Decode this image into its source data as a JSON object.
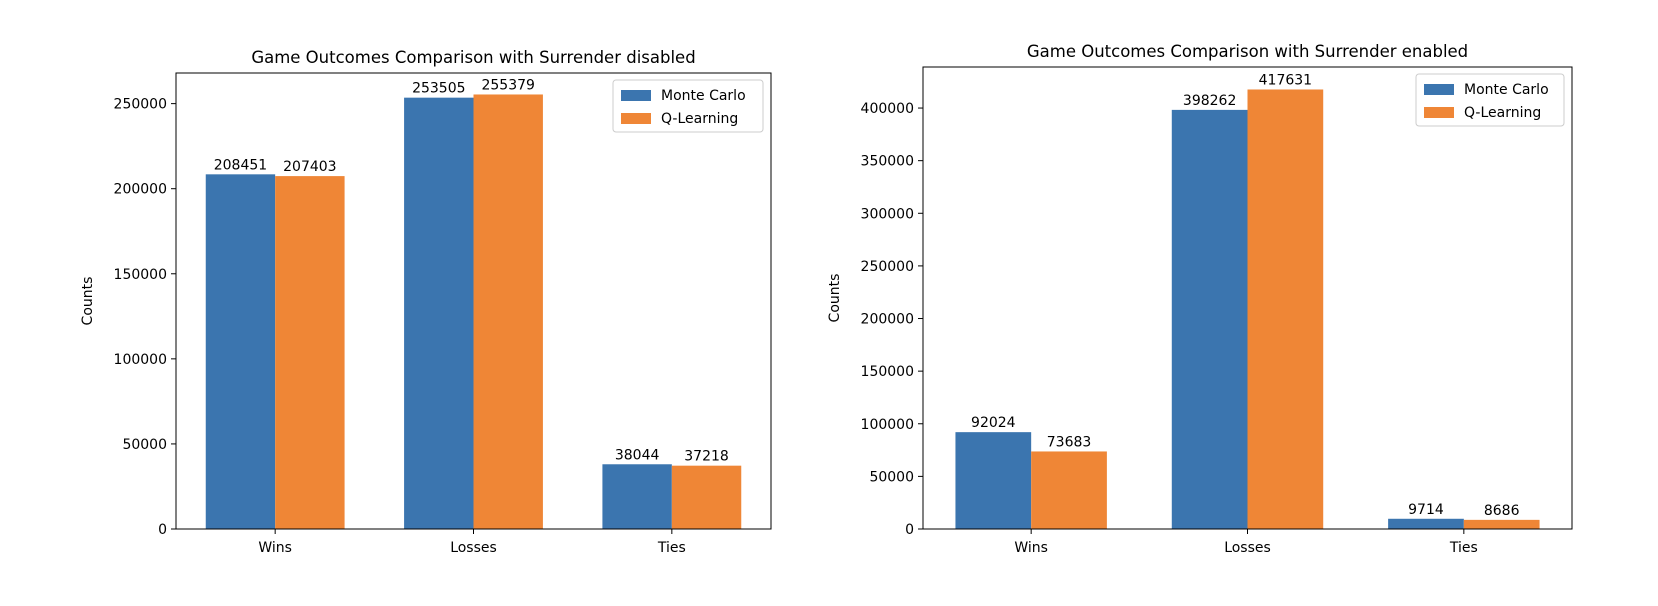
{
  "colors": {
    "series_0": "#3b75af",
    "series_1": "#ef8636"
  },
  "chart_data": [
    {
      "type": "bar",
      "title": "Game Outcomes Comparison with Surrender disabled",
      "xlabel": "",
      "ylabel": "Counts",
      "categories": [
        "Wins",
        "Losses",
        "Ties"
      ],
      "series": [
        {
          "name": "Monte Carlo",
          "values": [
            208451,
            253505,
            38044
          ],
          "labels": [
            "208451",
            "253505",
            "38044"
          ]
        },
        {
          "name": "Q-Learning",
          "values": [
            207403,
            255379,
            37218
          ],
          "labels": [
            "207403",
            "255379",
            "37218"
          ]
        }
      ],
      "ylim": [
        0,
        268000
      ],
      "yticks": [
        0,
        50000,
        100000,
        150000,
        200000,
        250000
      ],
      "ytick_labels": [
        "0",
        "50000",
        "100000",
        "150000",
        "200000",
        "250000"
      ],
      "grid": false,
      "legend_position": "top-right"
    },
    {
      "type": "bar",
      "title": "Game Outcomes Comparison with Surrender enabled",
      "xlabel": "",
      "ylabel": "Counts",
      "categories": [
        "Wins",
        "Losses",
        "Ties"
      ],
      "series": [
        {
          "name": "Monte Carlo",
          "values": [
            92024,
            398262,
            9714
          ],
          "labels": [
            "92024",
            "398262",
            "9714"
          ]
        },
        {
          "name": "Q-Learning",
          "values": [
            73683,
            417631,
            8686
          ],
          "labels": [
            "73683",
            "417631",
            "8686"
          ]
        }
      ],
      "ylim": [
        0,
        439000
      ],
      "yticks": [
        0,
        50000,
        100000,
        150000,
        200000,
        250000,
        300000,
        350000,
        400000
      ],
      "ytick_labels": [
        "0",
        "50000",
        "100000",
        "150000",
        "200000",
        "250000",
        "300000",
        "350000",
        "400000"
      ],
      "grid": false,
      "legend_position": "top-right"
    }
  ]
}
